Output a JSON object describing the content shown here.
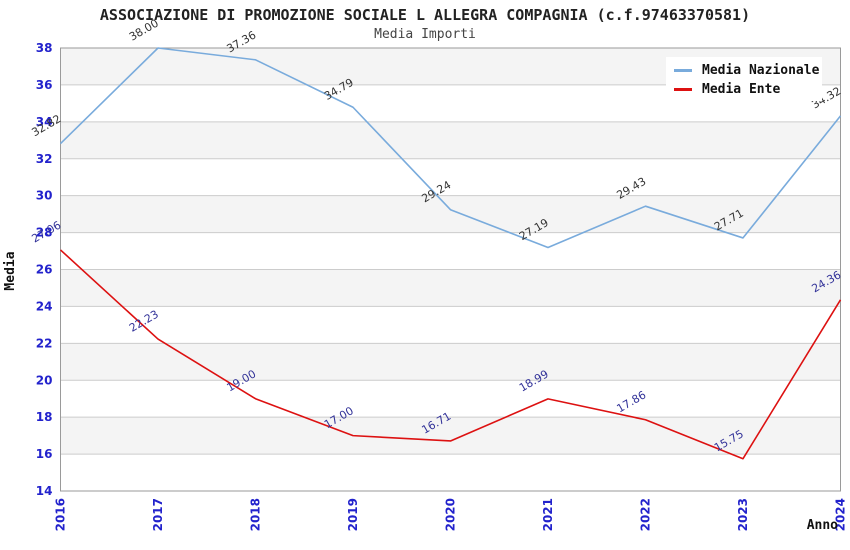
{
  "header": {
    "title": "ASSOCIAZIONE DI PROMOZIONE SOCIALE L ALLEGRA COMPAGNIA (c.f.97463370581)",
    "subtitle": "Media Importi"
  },
  "legend": {
    "position": "top-right",
    "items": [
      {
        "label": "Media Nazionale",
        "color": "#79abdc"
      },
      {
        "label": "Media Ente",
        "color": "#dd1111"
      }
    ]
  },
  "chart_data": {
    "type": "line",
    "title": "ASSOCIAZIONE DI PROMOZIONE SOCIALE L ALLEGRA COMPAGNIA (c.f.97463370581)",
    "subtitle": "Media Importi",
    "xlabel": "Anno",
    "ylabel": "Media",
    "categories": [
      2016,
      2017,
      2018,
      2019,
      2020,
      2021,
      2022,
      2023,
      2024
    ],
    "series": [
      {
        "name": "Media Nazionale",
        "color": "#79abdc",
        "label_color": "#333333",
        "values": [
          32.82,
          38.0,
          37.36,
          34.79,
          29.24,
          27.19,
          29.43,
          27.71,
          34.32
        ]
      },
      {
        "name": "Media Ente",
        "color": "#dd1111",
        "label_color": "#333399",
        "values": [
          27.06,
          22.23,
          19.0,
          17.0,
          16.71,
          18.99,
          17.86,
          15.75,
          24.36
        ]
      }
    ],
    "ylim": [
      14,
      38
    ],
    "ytick_step": 2,
    "grid": true,
    "stripe_color": "#f4f4f4",
    "grid_color": "#cccccc",
    "border_color": "#9a9a9a",
    "tick_label_color": "#2222cc",
    "legend_position": "top-right"
  }
}
